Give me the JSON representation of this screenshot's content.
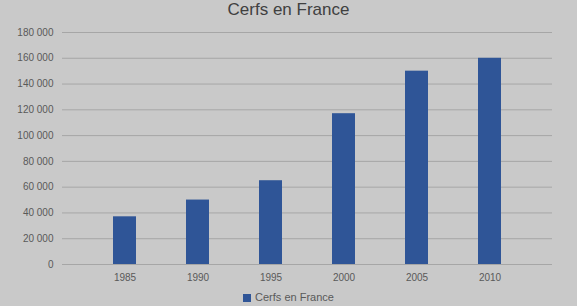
{
  "chart_data": {
    "type": "bar",
    "title": "Cerfs en France",
    "categories": [
      "1985",
      "1990",
      "1995",
      "2000",
      "2005",
      "2010"
    ],
    "series": [
      {
        "name": "Cerfs en France",
        "color": "#2f5597",
        "values": [
          37000,
          50000,
          65000,
          117000,
          150000,
          160000
        ]
      }
    ],
    "ylim": [
      0,
      180000
    ],
    "yticks": [
      0,
      {
        "value": 20000,
        "label": "20 000"
      },
      {
        "value": 40000,
        "label": "40 000"
      },
      {
        "value": 60000,
        "label": "60 000"
      },
      {
        "value": 80000,
        "label": "80 000"
      },
      {
        "value": 100000,
        "label": "100 000"
      },
      {
        "value": 120000,
        "label": "120 000"
      },
      {
        "value": 140000,
        "label": "140 000"
      },
      {
        "value": 160000,
        "label": "160 000"
      },
      {
        "value": 180000,
        "label": "180 000"
      }
    ],
    "grid": true,
    "legend": "bottom"
  }
}
